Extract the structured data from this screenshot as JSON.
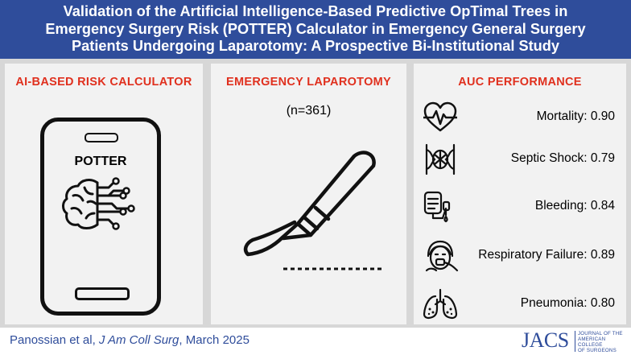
{
  "header": {
    "title_lines": [
      "Validation of the Artificial Intelligence-Based Predictive OpTimal Trees in",
      "Emergency Surgery Risk (POTTER) Calculator in Emergency General Surgery",
      "Patients Undergoing Laparotomy: A Prospective Bi-Institutional Study"
    ]
  },
  "panel_left": {
    "title": "AI-BASED RISK CALCULATOR",
    "phone_label": "POTTER"
  },
  "panel_middle": {
    "title": "EMERGENCY LAPAROTOMY",
    "subtitle": "(n=361)"
  },
  "panel_right": {
    "title": "AUC PERFORMANCE",
    "metrics": [
      {
        "label": "Mortality: 0.90",
        "icon": "heart-pulse-icon"
      },
      {
        "label": "Septic Shock: 0.79",
        "icon": "septic-shock-icon"
      },
      {
        "label": "Bleeding: 0.84",
        "icon": "blood-bag-icon"
      },
      {
        "label": "Respiratory Failure: 0.89",
        "icon": "ventilator-patient-icon"
      },
      {
        "label": "Pneumonia: 0.80",
        "icon": "lungs-icon"
      }
    ]
  },
  "footer": {
    "authors": "Panossian et al, ",
    "journal": "J Am Coll Surg",
    "date": ", March 2025"
  },
  "logo": {
    "abbr": "JACS",
    "full_lines": [
      "JOURNAL OF THE",
      "AMERICAN COLLEGE",
      "OF SURGEONS"
    ]
  },
  "colors": {
    "header_bg": "#2f4d9b",
    "accent_red": "#e0301e",
    "panel_bg": "#f2f2f2",
    "frame_bg": "#d7d7d7"
  }
}
